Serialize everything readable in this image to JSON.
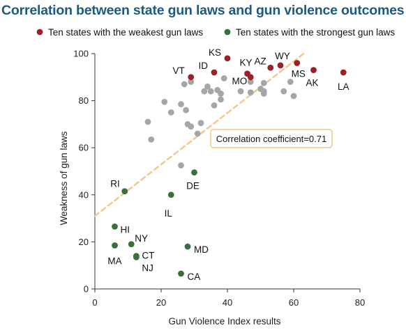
{
  "chart_data": {
    "type": "scatter",
    "title": "Correlation between state gun laws and gun violence outcomes",
    "xlabel": "Gun Violence Index results",
    "ylabel": "Weakness of gun laws",
    "xlim": [
      0,
      80
    ],
    "ylim": [
      0,
      100
    ],
    "xticks": [
      0,
      20,
      40,
      60,
      80
    ],
    "yticks": [
      0,
      20,
      40,
      60,
      80,
      100
    ],
    "grid": false,
    "legend_position": "top",
    "colors": {
      "weakest": "#9b2027",
      "strongest": "#3a6e3a",
      "other": "#a6a6a6",
      "trendline": "#f3c88a",
      "title": "#1f5a7d"
    },
    "series": [
      {
        "name": "Ten states with the weakest gun laws",
        "role": "weakest",
        "points": [
          {
            "label": "VT",
            "x": 29,
            "y": 90
          },
          {
            "label": "ID",
            "x": 36,
            "y": 92
          },
          {
            "label": "KS",
            "x": 40,
            "y": 98
          },
          {
            "label": "KY",
            "x": 46,
            "y": 91.5
          },
          {
            "label": "MO",
            "x": 47,
            "y": 90
          },
          {
            "label": "AZ",
            "x": 53,
            "y": 94
          },
          {
            "label": "WY",
            "x": 56,
            "y": 95
          },
          {
            "label": "MS",
            "x": 61,
            "y": 96
          },
          {
            "label": "AK",
            "x": 66,
            "y": 93
          },
          {
            "label": "LA",
            "x": 75,
            "y": 92
          }
        ]
      },
      {
        "name": "Ten states with the strongest gun laws",
        "role": "strongest",
        "points": [
          {
            "label": "RI",
            "x": 9,
            "y": 41.5
          },
          {
            "label": "IL",
            "x": 23,
            "y": 40
          },
          {
            "label": "DE",
            "x": 30,
            "y": 49.5
          },
          {
            "label": "HI",
            "x": 6,
            "y": 26.5
          },
          {
            "label": "NY",
            "x": 11,
            "y": 19
          },
          {
            "label": "MA",
            "x": 6,
            "y": 18.5
          },
          {
            "label": "CT",
            "x": 12.5,
            "y": 14
          },
          {
            "label": "NJ",
            "x": 12.5,
            "y": 13.5
          },
          {
            "label": "MD",
            "x": 28,
            "y": 18
          },
          {
            "label": "CA",
            "x": 26,
            "y": 6.5
          }
        ]
      },
      {
        "role": "other",
        "points": [
          {
            "x": 16,
            "y": 71
          },
          {
            "x": 17,
            "y": 63.5
          },
          {
            "x": 21,
            "y": 79.5
          },
          {
            "x": 23,
            "y": 75
          },
          {
            "x": 26,
            "y": 78.5
          },
          {
            "x": 27,
            "y": 87
          },
          {
            "x": 27.5,
            "y": 76
          },
          {
            "x": 28,
            "y": 70
          },
          {
            "x": 29,
            "y": 69
          },
          {
            "x": 29,
            "y": 88
          },
          {
            "x": 26,
            "y": 52.5
          },
          {
            "x": 31,
            "y": 66
          },
          {
            "x": 32,
            "y": 70.5
          },
          {
            "x": 33,
            "y": 84
          },
          {
            "x": 34,
            "y": 86
          },
          {
            "x": 35,
            "y": 84
          },
          {
            "x": 36,
            "y": 78
          },
          {
            "x": 37,
            "y": 84.5
          },
          {
            "x": 38,
            "y": 83
          },
          {
            "x": 38,
            "y": 80.5
          },
          {
            "x": 39,
            "y": 89.5
          },
          {
            "x": 44,
            "y": 84
          },
          {
            "x": 47,
            "y": 88
          },
          {
            "x": 47,
            "y": 83.5
          },
          {
            "x": 50,
            "y": 85
          },
          {
            "x": 51,
            "y": 84
          },
          {
            "x": 51,
            "y": 87.5
          },
          {
            "x": 51,
            "y": 83
          },
          {
            "x": 57,
            "y": 84
          },
          {
            "x": 59,
            "y": 88
          },
          {
            "x": 60,
            "y": 82
          }
        ]
      }
    ],
    "trendline": {
      "x": [
        0,
        63
      ],
      "y": [
        31,
        100
      ]
    },
    "annotation": {
      "text": "Correlation coefficient=0.71"
    }
  }
}
